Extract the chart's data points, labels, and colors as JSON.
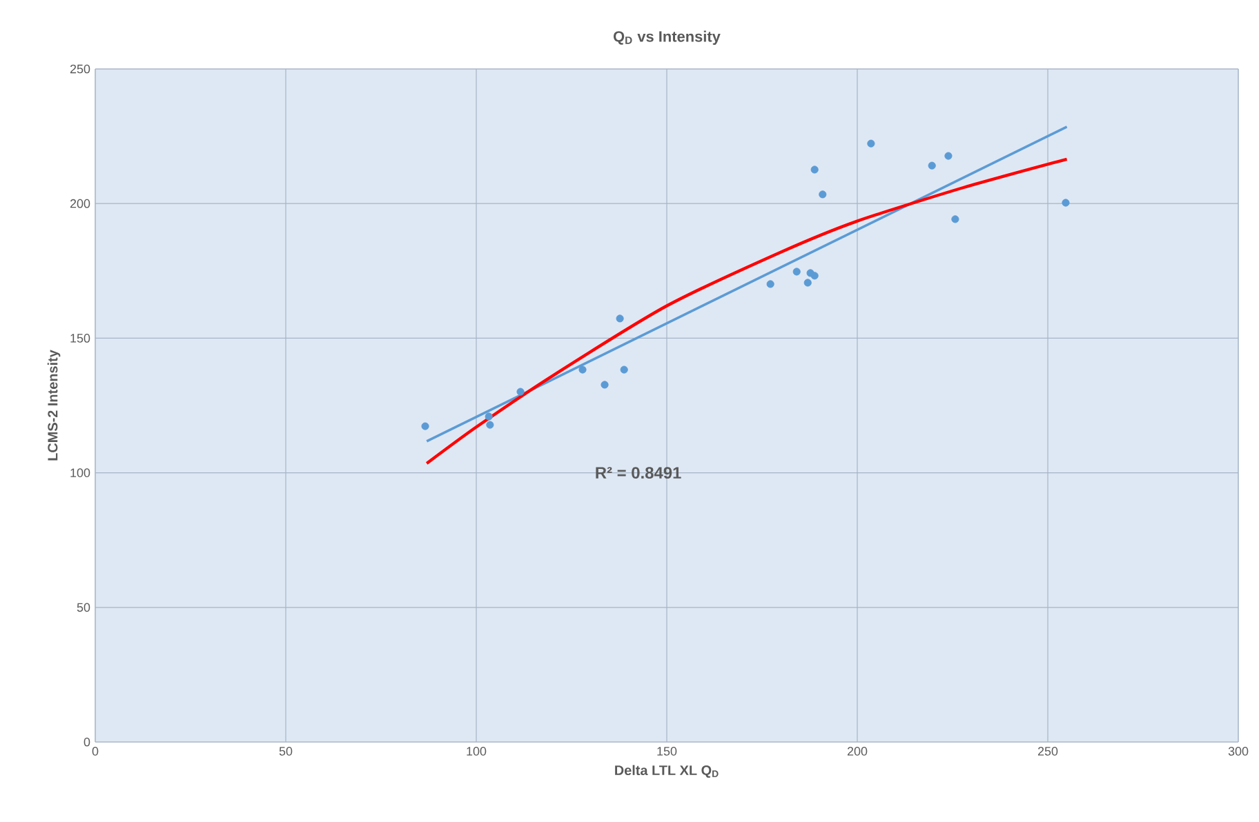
{
  "chart_data": {
    "type": "scatter",
    "title": "Q$_{D}$ vs Intensity",
    "xlabel": "Delta LTL XL Q$_{D}$",
    "ylabel": "LCMS-2 Intensity",
    "xlim": [
      0,
      300
    ],
    "ylim": [
      0,
      250
    ],
    "xticks": [
      0,
      50,
      100,
      150,
      200,
      250,
      300
    ],
    "yticks": [
      0,
      50,
      100,
      150,
      200,
      250
    ],
    "grid": true,
    "line_style": "solid",
    "annotations": [
      "R² = 0.8491"
    ],
    "series": [
      {
        "marker": "circle",
        "color": "#5b9bd5",
        "x": [
          86.6,
          103.3,
          103.6,
          111.6,
          127.9,
          133.7,
          137.7,
          138.8,
          177.2,
          184.1,
          187.0,
          187.7,
          188.8,
          188.8,
          190.9,
          203.6,
          219.6,
          223.9,
          225.7,
          254.7
        ],
        "values": [
          117.3,
          120.9,
          117.8,
          130.1,
          138.3,
          132.7,
          157.3,
          138.3,
          170.1,
          174.7,
          170.6,
          174.2,
          173.2,
          212.6,
          203.4,
          222.3,
          214.1,
          217.7,
          194.2,
          200.3
        ]
      },
      {
        "type": "line",
        "color": "#5b9bd5",
        "x": [
          87,
          255
        ],
        "values": [
          111.7,
          228.5
        ]
      },
      {
        "type": "line",
        "color": "#ff0000",
        "x": [
          87,
          100,
          120,
          150,
          180,
          200,
          228,
          255
        ],
        "values": [
          103.5,
          117,
          136,
          162,
          182,
          193.5,
          206,
          216.5
        ]
      }
    ]
  }
}
